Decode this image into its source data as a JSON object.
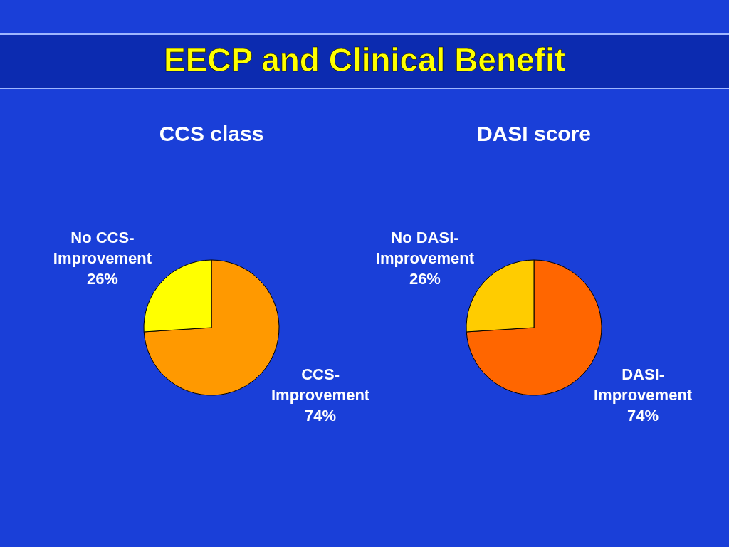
{
  "chart_data": [
    {
      "type": "other",
      "title": "EECP and Clinical Benefit"
    },
    {
      "type": "pie",
      "title": "CCS class",
      "categories": [
        "CCS-Improvement",
        "No CCS-Improvement"
      ],
      "values": [
        74,
        26
      ],
      "colors": [
        "#ff9900",
        "#ffff00"
      ],
      "value_labels": [
        "74%",
        "26%"
      ]
    },
    {
      "type": "pie",
      "title": "DASI score",
      "categories": [
        "DASI-Improvement",
        "No DASI-Improvement"
      ],
      "values": [
        74,
        26
      ],
      "colors": [
        "#ff6600",
        "#ffcc00"
      ],
      "value_labels": [
        "74%",
        "26%"
      ]
    }
  ]
}
